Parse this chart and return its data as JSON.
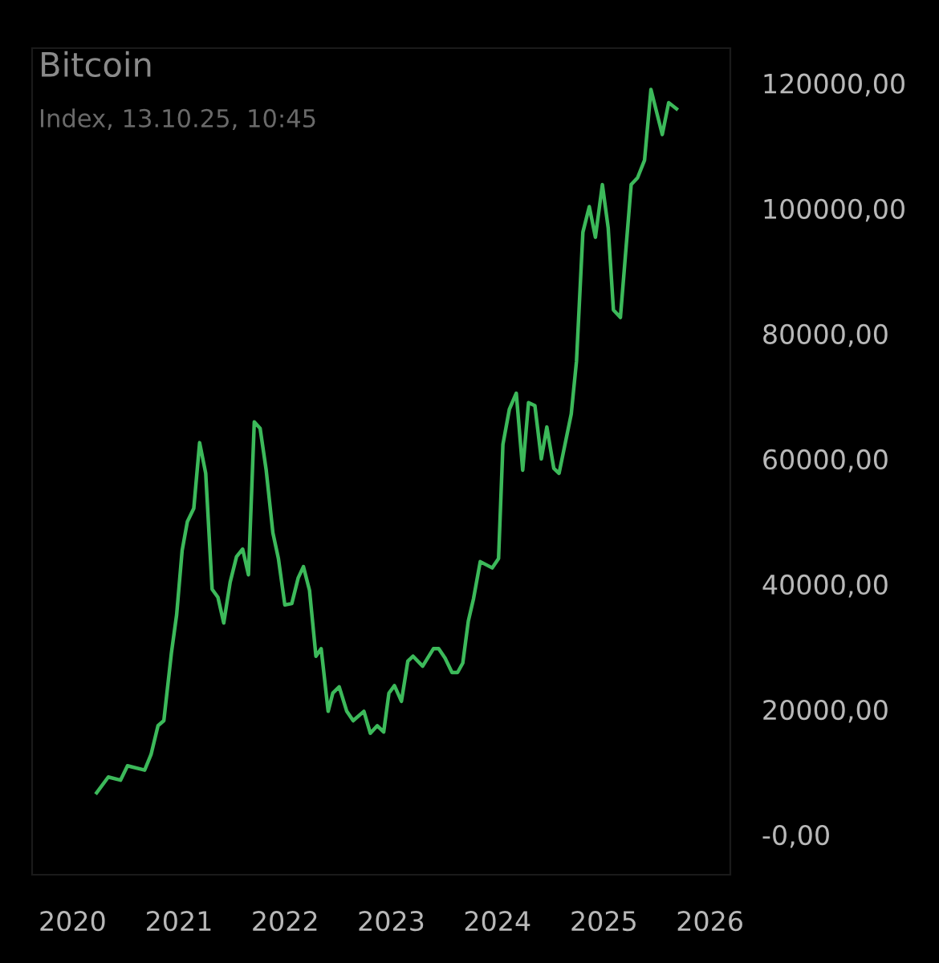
{
  "chart_data": {
    "type": "line",
    "title": "Bitcoin",
    "subtitle": "Index, 13.10.25, 10:45",
    "x": [
      "2020-03-24",
      "2020-05-03",
      "2020-06-14",
      "2020-07-08",
      "2020-09-05",
      "2020-09-27",
      "2020-10-21",
      "2020-11-10",
      "2020-12-06",
      "2020-12-24",
      "2021-01-12",
      "2021-01-30",
      "2021-02-21",
      "2021-03-13",
      "2021-04-03",
      "2021-04-25",
      "2021-05-15",
      "2021-06-04",
      "2021-06-26",
      "2021-07-18",
      "2021-08-08",
      "2021-08-28",
      "2021-09-17",
      "2021-10-07",
      "2021-10-28",
      "2021-11-20",
      "2021-12-09",
      "2021-12-31",
      "2022-01-24",
      "2022-02-15",
      "2022-03-05",
      "2022-03-26",
      "2022-04-17",
      "2022-05-05",
      "2022-05-29",
      "2022-06-14",
      "2022-07-06",
      "2022-08-01",
      "2022-08-23",
      "2022-09-29",
      "2022-10-21",
      "2022-11-14",
      "2022-12-06",
      "2022-12-24",
      "2023-01-12",
      "2023-02-05",
      "2023-02-27",
      "2023-03-17",
      "2023-04-19",
      "2023-05-26",
      "2023-06-13",
      "2023-07-05",
      "2023-07-29",
      "2023-08-17",
      "2023-09-04",
      "2023-09-23",
      "2023-10-11",
      "2023-11-03",
      "2023-12-14",
      "2024-01-05",
      "2024-01-20",
      "2024-02-11",
      "2024-03-06",
      "2024-03-28",
      "2024-04-17",
      "2024-05-09",
      "2024-05-31",
      "2024-06-19",
      "2024-07-13",
      "2024-07-31",
      "2024-09-11",
      "2024-09-29",
      "2024-10-21",
      "2024-11-12",
      "2024-12-03",
      "2024-12-27",
      "2025-01-16",
      "2025-02-03",
      "2025-02-27",
      "2025-04-05",
      "2025-04-27",
      "2025-05-21",
      "2025-06-12",
      "2025-07-21",
      "2025-08-12",
      "2025-09-08"
    ],
    "series": [
      {
        "color": "#3cb95a",
        "values": [
          6700,
          9200,
          8700,
          11000,
          10300,
          12800,
          17400,
          18200,
          29000,
          35100,
          45400,
          50000,
          52100,
          62600,
          57700,
          39200,
          37900,
          33800,
          40300,
          44400,
          45600,
          41500,
          65900,
          64900,
          58200,
          48200,
          44100,
          36700,
          36900,
          41000,
          42800,
          39000,
          28500,
          29700,
          19700,
          22600,
          23600,
          19700,
          18200,
          19700,
          16200,
          17400,
          16400,
          22600,
          23800,
          21300,
          27700,
          28500,
          26900,
          29700,
          29700,
          28200,
          25900,
          25900,
          27400,
          34100,
          37700,
          43600,
          42600,
          44100,
          62300,
          67900,
          70500,
          58200,
          69000,
          68500,
          60000,
          65100,
          58500,
          57700,
          67200,
          75600,
          96200,
          100300,
          95400,
          103800,
          96900,
          83800,
          82600,
          103800,
          104900,
          107700,
          119000,
          111800,
          116900,
          115900
        ]
      }
    ],
    "xlim": [
      "2019-08-15",
      "2026-03-12"
    ],
    "xticks": [
      {
        "value": "2020-01-01",
        "label": "2020"
      },
      {
        "value": "2021-01-01",
        "label": "2021"
      },
      {
        "value": "2022-01-01",
        "label": "2022"
      },
      {
        "value": "2023-01-01",
        "label": "2023"
      },
      {
        "value": "2024-01-01",
        "label": "2024"
      },
      {
        "value": "2025-01-01",
        "label": "2025"
      },
      {
        "value": "2026-01-01",
        "label": "2026"
      }
    ],
    "ylim": [
      -6400,
      125600
    ],
    "yticks": [
      {
        "value": 0,
        "label": "-0,00"
      },
      {
        "value": 20000,
        "label": "20000,00"
      },
      {
        "value": 40000,
        "label": "40000,00"
      },
      {
        "value": 60000,
        "label": "60000,00"
      },
      {
        "value": 80000,
        "label": "80000,00"
      },
      {
        "value": 100000,
        "label": "100000,00"
      },
      {
        "value": 120000,
        "label": "120000,00"
      }
    ],
    "grid": false
  }
}
